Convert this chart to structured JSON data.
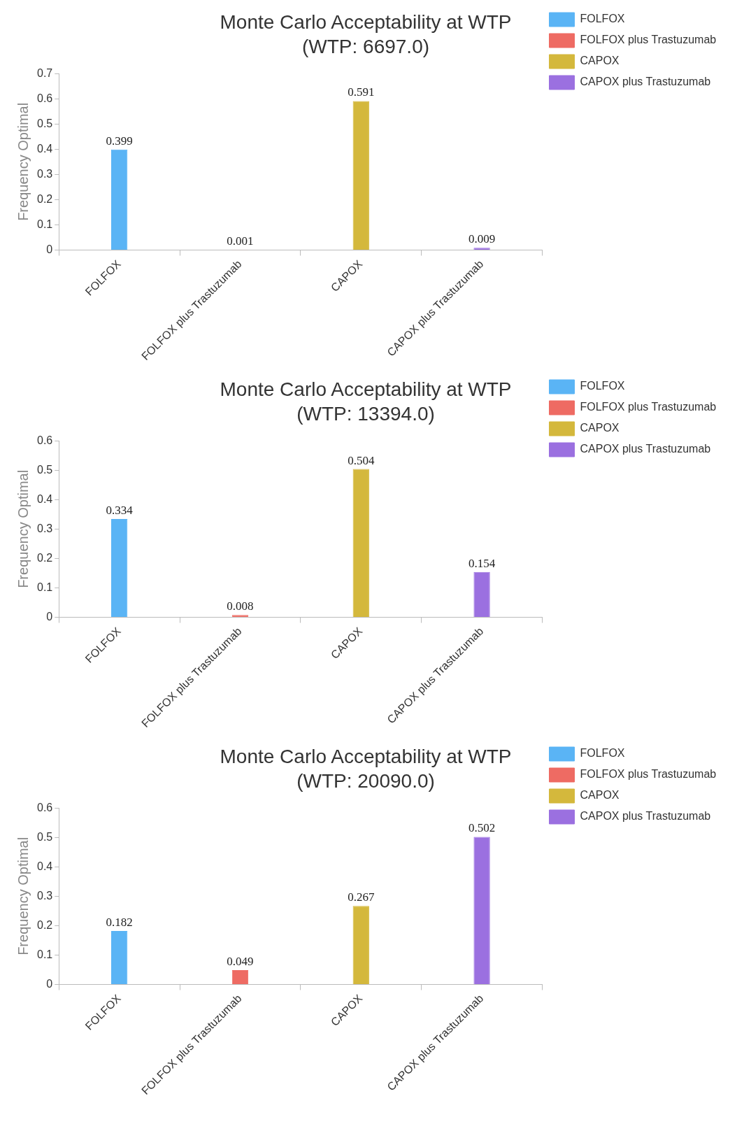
{
  "chart_data": [
    {
      "type": "bar",
      "title": "Monte Carlo Acceptability at WTP",
      "subtitle": "(WTP: 6697.0)",
      "ylabel": "Frequency Optimal",
      "categories": [
        "FOLFOX",
        "FOLFOX plus Trastuzumab",
        "CAPOX",
        "CAPOX plus Trastuzumab"
      ],
      "series": [
        {
          "name": "FOLFOX",
          "color": "#5ab4f5",
          "values": [
            0.399,
            null,
            null,
            null
          ]
        },
        {
          "name": "FOLFOX plus Trastuzumab",
          "color": "#ee6b63",
          "values": [
            null,
            0.001,
            null,
            null
          ]
        },
        {
          "name": "CAPOX",
          "color": "#d4b83c",
          "values": [
            null,
            null,
            0.591,
            null
          ]
        },
        {
          "name": "CAPOX plus Trastuzumab",
          "color": "#9b70e0",
          "values": [
            null,
            null,
            null,
            0.009
          ]
        }
      ],
      "ylim": [
        0,
        0.7
      ],
      "yticks": [
        0,
        0.1,
        0.2,
        0.3,
        0.4,
        0.5,
        0.6,
        0.7
      ],
      "data_labels": true,
      "legend": "top right",
      "grid": false
    },
    {
      "type": "bar",
      "title": "Monte Carlo Acceptability at WTP",
      "subtitle": "(WTP: 13394.0)",
      "ylabel": "Frequency Optimal",
      "categories": [
        "FOLFOX",
        "FOLFOX plus Trastuzumab",
        "CAPOX",
        "CAPOX plus Trastuzumab"
      ],
      "series": [
        {
          "name": "FOLFOX",
          "color": "#5ab4f5",
          "values": [
            0.334,
            null,
            null,
            null
          ]
        },
        {
          "name": "FOLFOX plus Trastuzumab",
          "color": "#ee6b63",
          "values": [
            null,
            0.008,
            null,
            null
          ]
        },
        {
          "name": "CAPOX",
          "color": "#d4b83c",
          "values": [
            null,
            null,
            0.504,
            null
          ]
        },
        {
          "name": "CAPOX plus Trastuzumab",
          "color": "#9b70e0",
          "values": [
            null,
            null,
            null,
            0.154
          ]
        }
      ],
      "ylim": [
        0,
        0.6
      ],
      "yticks": [
        0,
        0.1,
        0.2,
        0.3,
        0.4,
        0.5,
        0.6
      ],
      "data_labels": true,
      "legend": "top right",
      "grid": false
    },
    {
      "type": "bar",
      "title": "Monte Carlo Acceptability at WTP",
      "subtitle": "(WTP: 20090.0)",
      "ylabel": "Frequency Optimal",
      "categories": [
        "FOLFOX",
        "FOLFOX plus Trastuzumab",
        "CAPOX",
        "CAPOX plus Trastuzumab"
      ],
      "series": [
        {
          "name": "FOLFOX",
          "color": "#5ab4f5",
          "values": [
            0.182,
            null,
            null,
            null
          ]
        },
        {
          "name": "FOLFOX plus Trastuzumab",
          "color": "#ee6b63",
          "values": [
            null,
            0.049,
            null,
            null
          ]
        },
        {
          "name": "CAPOX",
          "color": "#d4b83c",
          "values": [
            null,
            null,
            0.267,
            null
          ]
        },
        {
          "name": "CAPOX plus Trastuzumab",
          "color": "#9b70e0",
          "values": [
            null,
            null,
            null,
            0.502
          ]
        }
      ],
      "ylim": [
        0,
        0.6
      ],
      "yticks": [
        0,
        0.1,
        0.2,
        0.3,
        0.4,
        0.5,
        0.6
      ],
      "data_labels": true,
      "legend": "top right",
      "grid": false
    }
  ]
}
